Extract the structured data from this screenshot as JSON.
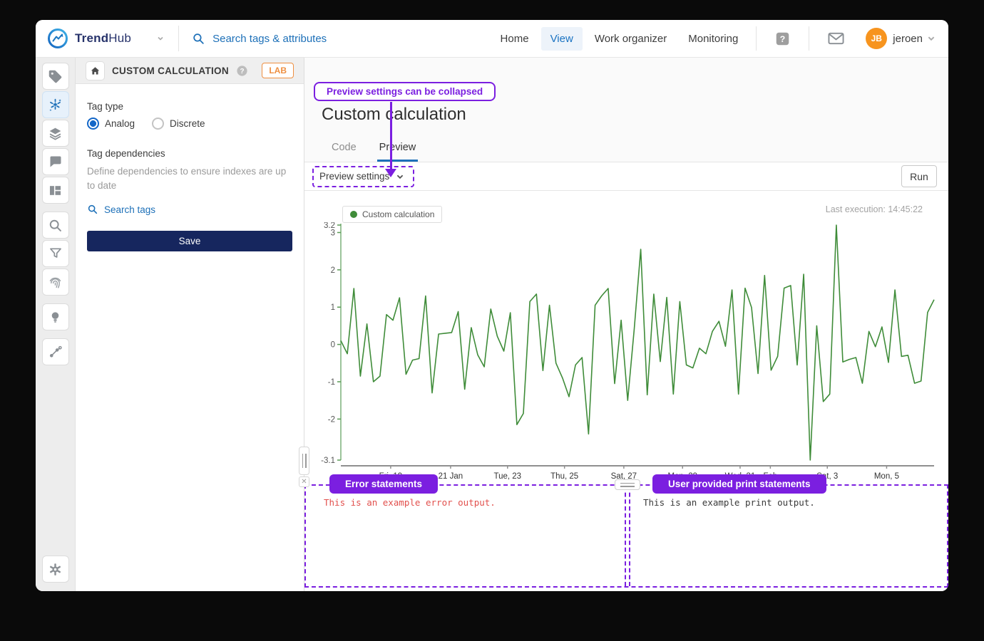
{
  "navbar": {
    "brand_bold": "Trend",
    "brand_light": "Hub",
    "search_placeholder": "Search tags & attributes",
    "items": [
      {
        "label": "Home",
        "active": false
      },
      {
        "label": "View",
        "active": true
      },
      {
        "label": "Work organizer",
        "active": false
      },
      {
        "label": "Monitoring",
        "active": false
      }
    ],
    "user": {
      "initials": "JB",
      "name": "jeroen"
    }
  },
  "sidebar_panel": {
    "title": "CUSTOM CALCULATION",
    "lab_badge": "LAB",
    "tag_type": {
      "label": "Tag type",
      "options": [
        "Analog",
        "Discrete"
      ],
      "selected": "Analog"
    },
    "dependencies": {
      "label": "Tag dependencies",
      "help": "Define dependencies to ensure indexes are up to date",
      "search_link": "Search tags"
    },
    "save_label": "Save"
  },
  "main": {
    "callout": "Preview settings can be collapsed",
    "title": "Custom calculation",
    "tabs": [
      {
        "label": "Code",
        "active": false
      },
      {
        "label": "Preview",
        "active": true
      }
    ],
    "preview_settings": "Preview settings",
    "run_label": "Run",
    "last_execution": "Last execution: 14:45:22",
    "console": {
      "error_callout": "Error statements",
      "print_callout": "User provided print statements",
      "error_output": "This is an example error output.",
      "print_output": "This is an example print output."
    }
  },
  "colors": {
    "accent_blue": "#1d70b8",
    "annotation_purple": "#7b1fe0",
    "chart_green": "#3f8c39",
    "save_navy": "#16265e",
    "avatar_orange": "#f7941e",
    "lab_orange": "#ee8f41",
    "error_red": "#e2504d"
  },
  "chart_data": {
    "type": "line",
    "title": "",
    "legend": [
      "Custom calculation"
    ],
    "legend_position": "top-left",
    "grid": false,
    "ylim": [
      -3.1,
      3.2
    ],
    "y_ticks": [
      "3.2",
      "3",
      "2",
      "1",
      "0",
      "-1",
      "-2",
      "-3.1"
    ],
    "x_ticks": [
      {
        "label": "Fri, 19",
        "pos": 0.084
      },
      {
        "label": "21 Jan",
        "pos": 0.185
      },
      {
        "label": "Tue, 23",
        "pos": 0.281
      },
      {
        "label": "Thu, 25",
        "pos": 0.377
      },
      {
        "label": "Sat, 27",
        "pos": 0.477
      },
      {
        "label": "Mon, 29",
        "pos": 0.576
      },
      {
        "label": "Wed, 31",
        "pos": 0.673
      },
      {
        "label": "Feb",
        "pos": 0.724
      },
      {
        "label": "Sat, 3",
        "pos": 0.82
      },
      {
        "label": "Mon, 5",
        "pos": 0.92
      }
    ],
    "series": [
      {
        "name": "Custom calculation",
        "color": "#3f8c39",
        "values": [
          0.1,
          -0.25,
          1.5,
          -0.85,
          0.55,
          -1.0,
          -0.85,
          0.8,
          0.65,
          1.25,
          -0.8,
          -0.42,
          -0.38,
          1.3,
          -1.3,
          0.28,
          0.3,
          0.32,
          0.88,
          -1.2,
          0.45,
          -0.28,
          -0.6,
          0.95,
          0.22,
          -0.18,
          0.85,
          -2.15,
          -1.85,
          1.15,
          1.35,
          -0.7,
          1.05,
          -0.5,
          -0.9,
          -1.4,
          -0.55,
          -0.35,
          -2.4,
          1.05,
          1.3,
          1.5,
          -1.05,
          0.65,
          -1.5,
          0.4,
          2.55,
          -1.35,
          1.35,
          -0.46,
          1.26,
          -1.33,
          1.15,
          -0.55,
          -0.63,
          -0.1,
          -0.25,
          0.35,
          0.62,
          -0.05,
          1.46,
          -1.33,
          1.51,
          0.99,
          -0.78,
          1.85,
          -0.69,
          -0.32,
          1.51,
          1.58,
          -0.55,
          1.88,
          -3.1,
          0.5,
          -1.53,
          -1.33,
          3.2,
          -0.47,
          -0.4,
          -0.35,
          -1.04,
          0.35,
          -0.06,
          0.47,
          -0.48,
          1.46,
          -0.32,
          -0.29,
          -1.04,
          -0.98,
          0.86,
          1.2
        ]
      }
    ]
  }
}
